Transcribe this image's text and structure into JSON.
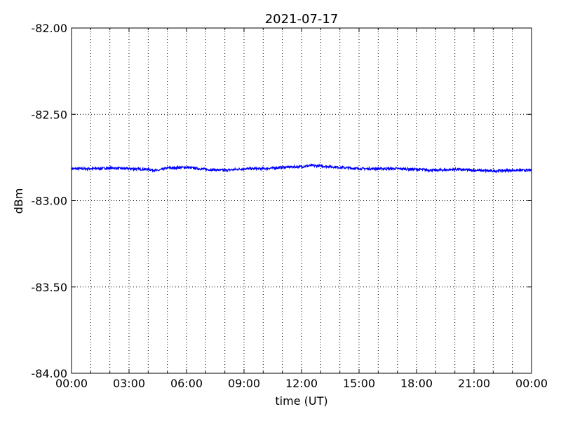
{
  "chart_data": {
    "type": "line",
    "title": "2021-07-17",
    "xlabel": "time (UT)",
    "ylabel": "dBm",
    "xlim_hours": [
      0,
      24
    ],
    "ylim": [
      -84.0,
      -82.0
    ],
    "x_tick_labels": [
      "00:00",
      "03:00",
      "06:00",
      "09:00",
      "12:00",
      "15:00",
      "18:00",
      "21:00",
      "00:00"
    ],
    "y_ticks": [
      -84.0,
      -83.5,
      -83.0,
      -82.5,
      -82.0
    ],
    "y_tick_labels": [
      "-84.00",
      "-83.50",
      "-83.00",
      "-82.50",
      "-82.00"
    ],
    "grid": true,
    "grid_style": "dotted, hourly vertical lines",
    "line_color": "#0000ff",
    "series": [
      {
        "x_hours": [
          0,
          1,
          2,
          3,
          4,
          4.5,
          5,
          6,
          7,
          8,
          9,
          10,
          11,
          12,
          12.5,
          13,
          14,
          15,
          16,
          17,
          18,
          19,
          20,
          21,
          22,
          23,
          24
        ],
        "values": [
          -82.815,
          -82.815,
          -82.811,
          -82.815,
          -82.819,
          -82.826,
          -82.811,
          -82.807,
          -82.819,
          -82.824,
          -82.815,
          -82.815,
          -82.807,
          -82.803,
          -82.797,
          -82.799,
          -82.807,
          -82.815,
          -82.815,
          -82.815,
          -82.819,
          -82.824,
          -82.819,
          -82.824,
          -82.828,
          -82.824,
          -82.824
        ]
      }
    ]
  }
}
